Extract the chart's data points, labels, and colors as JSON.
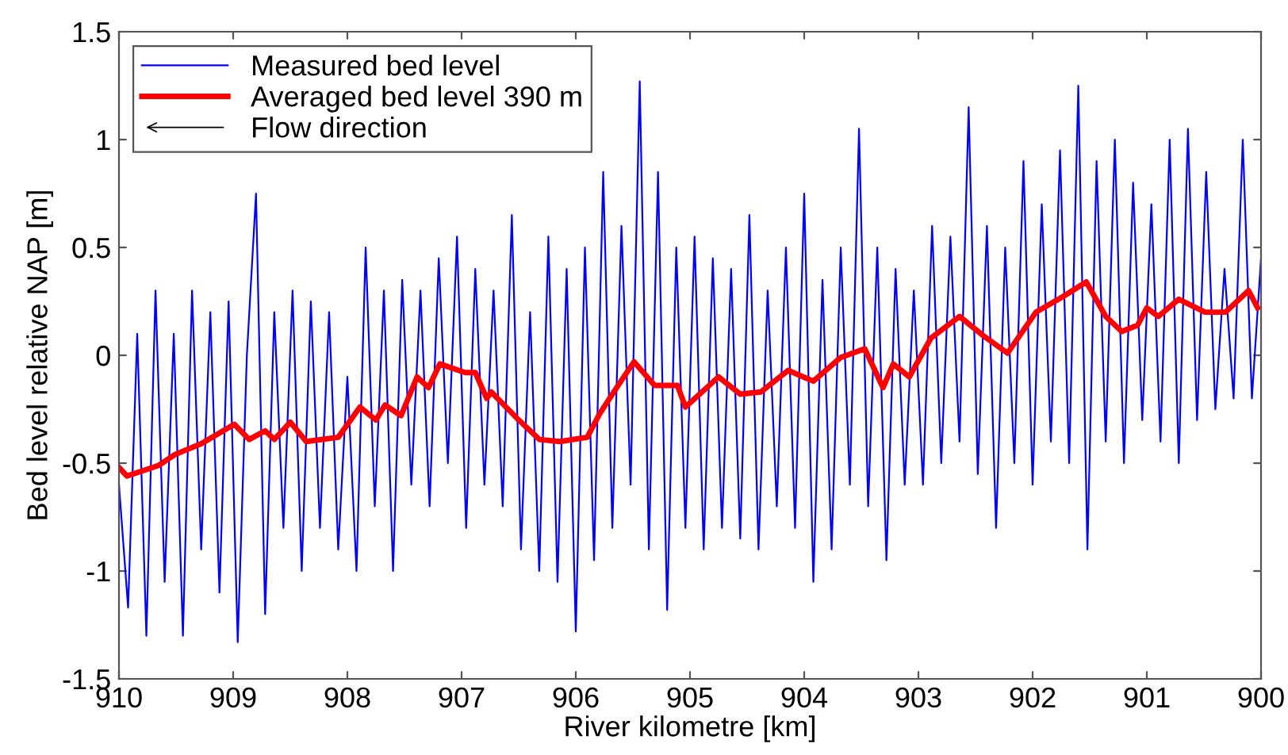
{
  "chart_data": {
    "type": "line",
    "xlabel": "River kilometre [km]",
    "ylabel": "Bed level relative NAP [m]",
    "xlim": [
      910,
      900
    ],
    "xticks": [
      910,
      909,
      908,
      907,
      906,
      905,
      904,
      903,
      902,
      901,
      900
    ],
    "ylim": [
      -1.5,
      1.5
    ],
    "yticks": [
      -1.5,
      -1,
      -0.5,
      0,
      0.5,
      1,
      1.5
    ],
    "grid": false,
    "legend": "top left",
    "marker": "none",
    "line_style": "solid",
    "annotations": [
      "Flow direction"
    ],
    "series": [
      {
        "name": "Measured bed level",
        "color": "#0000ff",
        "x": [
          910.0,
          909.92,
          909.84,
          909.76,
          909.68,
          909.6,
          909.52,
          909.44,
          909.36,
          909.28,
          909.2,
          909.12,
          909.04,
          908.96,
          908.88,
          908.8,
          908.72,
          908.64,
          908.56,
          908.48,
          908.4,
          908.32,
          908.24,
          908.16,
          908.08,
          908.0,
          907.92,
          907.84,
          907.76,
          907.68,
          907.6,
          907.52,
          907.44,
          907.36,
          907.28,
          907.2,
          907.12,
          907.04,
          906.96,
          906.88,
          906.8,
          906.72,
          906.64,
          906.56,
          906.48,
          906.4,
          906.32,
          906.24,
          906.16,
          906.08,
          906.0,
          905.92,
          905.84,
          905.76,
          905.68,
          905.6,
          905.52,
          905.44,
          905.36,
          905.28,
          905.2,
          905.12,
          905.04,
          904.96,
          904.88,
          904.8,
          904.72,
          904.64,
          904.56,
          904.48,
          904.4,
          904.32,
          904.24,
          904.16,
          904.08,
          904.0,
          903.92,
          903.84,
          903.76,
          903.68,
          903.6,
          903.52,
          903.44,
          903.36,
          903.28,
          903.2,
          903.12,
          903.04,
          902.96,
          902.88,
          902.8,
          902.72,
          902.64,
          902.56,
          902.48,
          902.4,
          902.32,
          902.24,
          902.16,
          902.08,
          902.0,
          901.92,
          901.84,
          901.76,
          901.68,
          901.6,
          901.52,
          901.44,
          901.36,
          901.28,
          901.2,
          901.12,
          901.04,
          900.96,
          900.88,
          900.8,
          900.72,
          900.64,
          900.56,
          900.48,
          900.4,
          900.32,
          900.24,
          900.16,
          900.08,
          900.0
        ],
        "values": [
          -0.6,
          -1.17,
          0.1,
          -1.3,
          0.3,
          -1.05,
          0.1,
          -1.3,
          0.3,
          -0.9,
          0.2,
          -1.1,
          0.25,
          -1.33,
          0.0,
          0.75,
          -1.2,
          0.2,
          -0.8,
          0.3,
          -1.0,
          0.25,
          -0.8,
          0.2,
          -0.9,
          -0.1,
          -1.0,
          0.5,
          -0.7,
          0.3,
          -1.0,
          0.35,
          -0.6,
          0.3,
          -0.7,
          0.45,
          -0.5,
          0.55,
          -0.8,
          0.4,
          -0.6,
          0.3,
          -0.7,
          0.65,
          -0.9,
          0.2,
          -1.0,
          0.55,
          -1.05,
          0.4,
          -1.28,
          0.5,
          -0.95,
          0.85,
          -0.8,
          0.6,
          -0.6,
          1.27,
          -0.9,
          0.85,
          -1.18,
          0.5,
          -0.8,
          0.55,
          -0.9,
          0.45,
          -0.8,
          0.4,
          -0.85,
          0.65,
          -0.9,
          0.3,
          -0.7,
          0.5,
          -0.8,
          0.75,
          -1.05,
          0.35,
          -0.9,
          0.5,
          -0.6,
          1.05,
          -0.7,
          0.5,
          -0.95,
          0.4,
          -0.6,
          0.3,
          -0.6,
          0.6,
          -0.5,
          0.55,
          -0.4,
          1.15,
          -0.55,
          0.6,
          -0.8,
          0.5,
          -0.5,
          0.9,
          -0.6,
          0.7,
          -0.4,
          0.95,
          -0.5,
          1.25,
          -0.9,
          0.9,
          -0.4,
          1.0,
          -0.5,
          0.8,
          -0.3,
          0.7,
          -0.4,
          1.0,
          -0.5,
          1.05,
          -0.3,
          0.85,
          -0.25,
          0.4,
          -0.2,
          1.0,
          -0.2,
          0.45
        ]
      },
      {
        "name": "Averaged bed level 390 m",
        "color": "#ff0000",
        "x": [
          910,
          909.93,
          909.65,
          909.51,
          909.28,
          908.99,
          908.86,
          908.72,
          908.64,
          908.5,
          908.36,
          908.08,
          907.89,
          907.75,
          907.67,
          907.53,
          907.39,
          907.29,
          907.19,
          906.97,
          906.88,
          906.78,
          906.74,
          906.5,
          906.32,
          906.14,
          905.9,
          905.79,
          905.63,
          905.49,
          905.31,
          905.11,
          905.04,
          904.75,
          904.56,
          904.38,
          904.14,
          903.92,
          903.68,
          903.47,
          903.31,
          903.22,
          903.08,
          902.89,
          902.64,
          902.43,
          902.22,
          901.97,
          901.74,
          901.53,
          901.36,
          901.22,
          901.08,
          901.0,
          900.9,
          900.72,
          900.49,
          900.31,
          900.11,
          900.03
        ],
        "values": [
          -0.52,
          -0.56,
          -0.51,
          -0.46,
          -0.41,
          -0.32,
          -0.39,
          -0.35,
          -0.39,
          -0.31,
          -0.4,
          -0.38,
          -0.24,
          -0.3,
          -0.23,
          -0.28,
          -0.1,
          -0.15,
          -0.04,
          -0.08,
          -0.08,
          -0.2,
          -0.17,
          -0.3,
          -0.39,
          -0.4,
          -0.38,
          -0.27,
          -0.14,
          -0.03,
          -0.14,
          -0.14,
          -0.24,
          -0.1,
          -0.18,
          -0.17,
          -0.07,
          -0.12,
          -0.01,
          0.03,
          -0.15,
          -0.04,
          -0.1,
          0.08,
          0.18,
          0.09,
          0.01,
          0.2,
          0.27,
          0.34,
          0.18,
          0.11,
          0.14,
          0.22,
          0.18,
          0.26,
          0.2,
          0.2,
          0.3,
          0.22
        ]
      }
    ]
  }
}
